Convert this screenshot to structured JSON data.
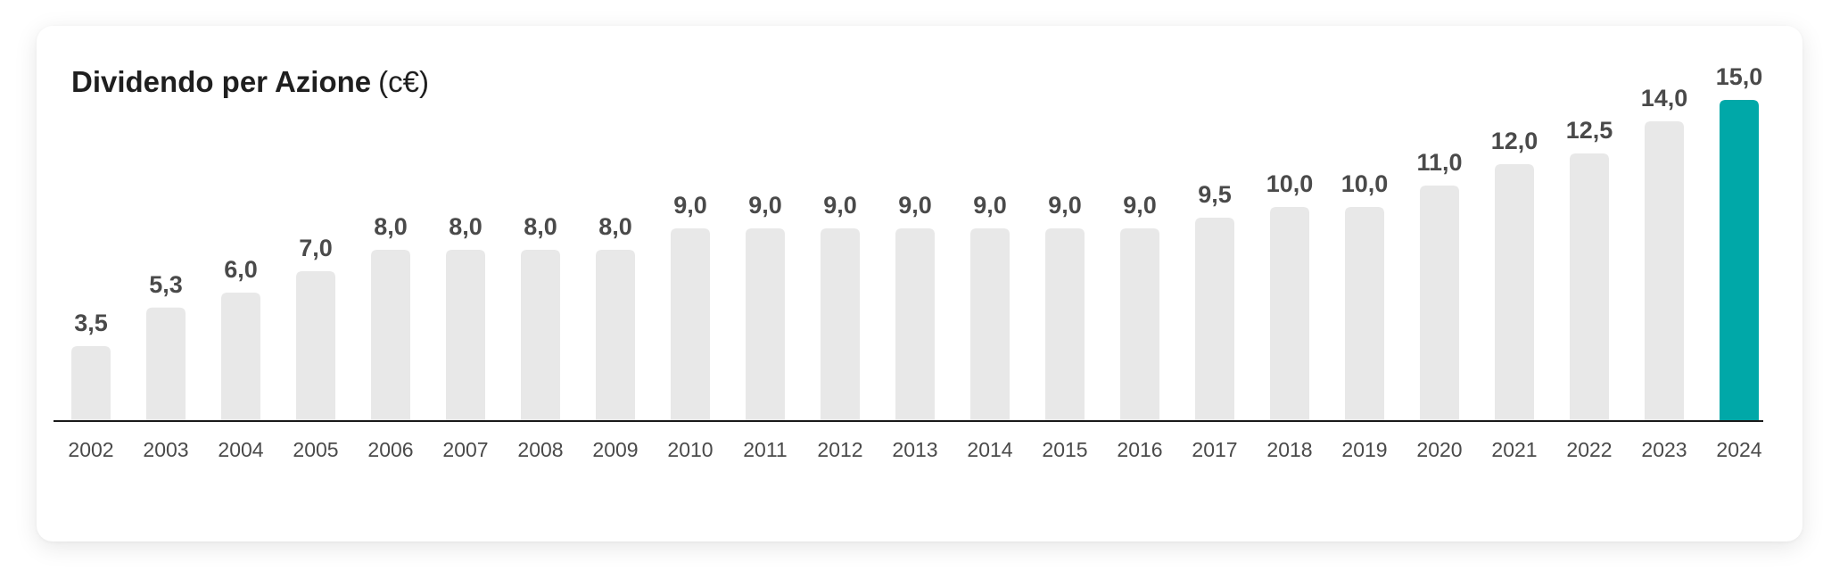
{
  "chart_data": {
    "type": "bar",
    "title": "Dividendo per Azione",
    "unit": "(c€)",
    "xlabel": "",
    "ylabel": "",
    "ylim": [
      0,
      15
    ],
    "grid": false,
    "categories": [
      "2002",
      "2003",
      "2004",
      "2005",
      "2006",
      "2007",
      "2008",
      "2009",
      "2010",
      "2011",
      "2012",
      "2013",
      "2014",
      "2015",
      "2016",
      "2017",
      "2018",
      "2019",
      "2020",
      "2021",
      "2022",
      "2023",
      "2024"
    ],
    "values": [
      3.5,
      5.3,
      6.0,
      7.0,
      8.0,
      8.0,
      8.0,
      8.0,
      9.0,
      9.0,
      9.0,
      9.0,
      9.0,
      9.0,
      9.0,
      9.5,
      10.0,
      10.0,
      11.0,
      12.0,
      12.5,
      14.0,
      15.0
    ],
    "value_labels": [
      "3,5",
      "5,3",
      "6,0",
      "7,0",
      "8,0",
      "8,0",
      "8,0",
      "8,0",
      "9,0",
      "9,0",
      "9,0",
      "9,0",
      "9,0",
      "9,0",
      "9,0",
      "9,5",
      "10,0",
      "10,0",
      "11,0",
      "12,0",
      "12,5",
      "14,0",
      "15,0"
    ],
    "highlight_category": "2024",
    "colors": {
      "bar": "#e8e8e8",
      "highlight": "#00a8a8",
      "axis": "#1a1a1a",
      "text": "#4a4a4a",
      "title": "#1f1f1f"
    }
  }
}
